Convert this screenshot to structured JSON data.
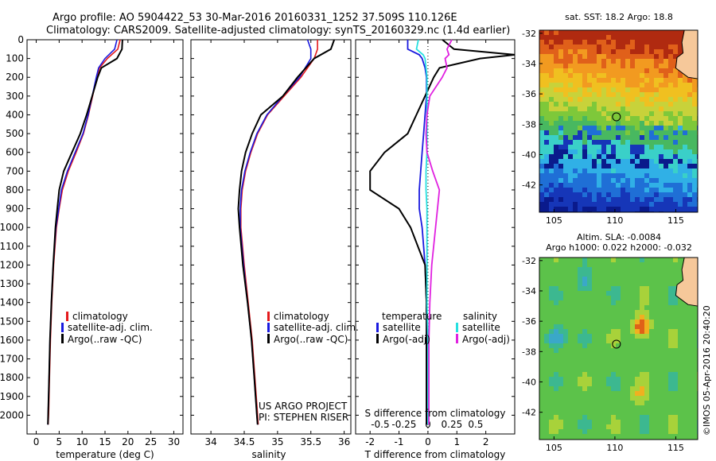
{
  "header": {
    "title_line1": "Argo profile: AO 5904422_53 30-Mar-2016 20160331_1252 37.509S 110.126E",
    "title_line2": "Climatology: CARS2009. Satellite-adjusted climatology: synTS_20160329.nc (1.4d earlier)"
  },
  "colors": {
    "climatology": "#e41a1c",
    "satellite": "#1a1adf",
    "argo": "#000000",
    "sat_salinity": "#26e0e0",
    "argo_salinity": "#e020e0"
  },
  "panels": {
    "temperature": {
      "xlabel": "temperature (deg C)",
      "legend": [
        "climatology",
        "satellite-adj. clim.",
        "Argo(..raw -QC)"
      ]
    },
    "salinity": {
      "xlabel": "salinity",
      "legend": [
        "climatology",
        "satellite-adj. clim.",
        "Argo(..raw -QC)"
      ],
      "credit1": "US ARGO PROJECT",
      "credit2": "PI: STEPHEN RISER"
    },
    "difference": {
      "xlabel": "T difference from climatology",
      "s_label": "S difference from climatology",
      "legend_t_title": "temperature",
      "legend_s_title": "salinity",
      "legend_t": [
        "satellite",
        "Argo(-adj)"
      ],
      "legend_s": [
        "satellite",
        "Argo(-adj)"
      ]
    }
  },
  "maps": {
    "sst_title": "sat. SST: 18.2  Argo: 18.8",
    "sla_title1": "Altim. SLA: -0.0084",
    "sla_title2": "Argo h1000: 0.022 h2000: -0.032",
    "watermark": "©IMOS 05-Apr-2016 20:40:20",
    "lat_ticks": [
      "-32",
      "-34",
      "-36",
      "-38",
      "-40",
      "-42"
    ],
    "lon_ticks": [
      "105",
      "110",
      "115"
    ],
    "float_lon": 110.126,
    "float_lat": -37.509
  },
  "chart_data": [
    {
      "type": "line",
      "xlabel": "temperature (deg C)",
      "ylabel": "",
      "xlim": [
        -2,
        32
      ],
      "ylim": [
        2100,
        0
      ],
      "x_ticks": [
        0,
        5,
        10,
        15,
        20,
        25,
        30
      ],
      "y_ticks": [
        0,
        100,
        200,
        300,
        400,
        500,
        600,
        700,
        800,
        900,
        1000,
        1100,
        1200,
        1300,
        1400,
        1500,
        1600,
        1700,
        1800,
        1900,
        2000
      ],
      "depth": [
        0,
        50,
        100,
        150,
        200,
        300,
        400,
        500,
        600,
        700,
        800,
        900,
        1000,
        1200,
        1400,
        1600,
        1800,
        2000,
        2050
      ],
      "series": [
        {
          "name": "climatology",
          "values": [
            18.3,
            17.8,
            15.5,
            13.8,
            13.2,
            12.3,
            11.4,
            10.3,
            8.7,
            7.0,
            5.7,
            5.0,
            4.4,
            3.8,
            3.4,
            3.1,
            2.9,
            2.7,
            2.6
          ]
        },
        {
          "name": "satellite-adj. clim.",
          "values": [
            17.6,
            17.1,
            15.0,
            13.6,
            13.1,
            12.2,
            11.3,
            10.2,
            8.5,
            6.8,
            5.5,
            4.9,
            4.3,
            3.7,
            3.3,
            3.0,
            2.8,
            2.6,
            2.55
          ]
        },
        {
          "name": "Argo(..raw -QC)",
          "values": [
            18.8,
            18.7,
            17.6,
            14.2,
            13.4,
            12.2,
            11.0,
            9.6,
            7.8,
            6.0,
            5.0,
            4.6,
            4.2,
            3.7,
            3.3,
            3.0,
            2.8,
            2.6,
            2.55
          ]
        }
      ]
    },
    {
      "type": "line",
      "xlabel": "salinity",
      "xlim": [
        33.7,
        36.1
      ],
      "ylim": [
        2100,
        0
      ],
      "x_ticks": [
        34,
        34.5,
        35,
        35.5,
        36
      ],
      "depth": [
        0,
        50,
        100,
        200,
        300,
        400,
        500,
        600,
        700,
        800,
        900,
        1000,
        1200,
        1400,
        1600,
        1800,
        2000,
        2050
      ],
      "series": [
        {
          "name": "climatology",
          "values": [
            35.6,
            35.6,
            35.55,
            35.35,
            35.1,
            34.85,
            34.7,
            34.6,
            34.52,
            34.47,
            34.45,
            34.45,
            34.5,
            34.56,
            34.62,
            34.66,
            34.7,
            34.71
          ]
        },
        {
          "name": "satellite-adj. clim.",
          "values": [
            35.45,
            35.5,
            35.5,
            35.33,
            35.08,
            34.84,
            34.69,
            34.59,
            34.51,
            34.46,
            34.44,
            34.44,
            34.49,
            34.55,
            34.61,
            34.65,
            34.69,
            34.7
          ]
        },
        {
          "name": "Argo(..raw -QC)",
          "values": [
            35.85,
            35.8,
            35.55,
            35.3,
            35.08,
            34.75,
            34.62,
            34.52,
            34.46,
            34.43,
            34.41,
            34.43,
            34.48,
            34.55,
            34.61,
            34.65,
            34.69,
            34.7
          ]
        }
      ]
    },
    {
      "type": "line",
      "xlabel": "T difference from climatology",
      "xlim": [
        -2.5,
        3
      ],
      "ylim": [
        2100,
        0
      ],
      "x_ticks": [
        -2,
        -1,
        0,
        1,
        2
      ],
      "s_ticks": [
        "-0.5",
        "-0.25",
        "0",
        "0.25",
        "0.5"
      ],
      "depth": [
        0,
        50,
        80,
        100,
        150,
        200,
        300,
        400,
        500,
        600,
        700,
        800,
        900,
        1000,
        1200,
        1400,
        1600,
        1800,
        2000,
        2050
      ],
      "series": [
        {
          "name": "T satellite",
          "values": [
            -0.7,
            -0.7,
            -0.3,
            -0.2,
            -0.1,
            -0.05,
            -0.05,
            -0.1,
            -0.15,
            -0.2,
            -0.25,
            -0.3,
            -0.3,
            -0.2,
            -0.1,
            -0.05,
            -0.05,
            -0.05,
            -0.05,
            -0.05
          ]
        },
        {
          "name": "T Argo(-adj)",
          "values": [
            0.5,
            0.9,
            3.0,
            1.8,
            0.4,
            0.2,
            -0.1,
            -0.4,
            -0.7,
            -1.5,
            -2.0,
            -2.0,
            -1.0,
            -0.6,
            -0.1,
            -0.05,
            -0.05,
            -0.05,
            -0.05,
            -0.05
          ]
        },
        {
          "name": "S satellite",
          "values": [
            -0.1,
            -0.12,
            -0.05,
            -0.03,
            -0.02,
            -0.01,
            -0.01,
            -0.01,
            -0.01,
            -0.01,
            -0.02,
            -0.02,
            -0.01,
            -0.01,
            -0.01,
            -0.01,
            0,
            0,
            0,
            0
          ]
        },
        {
          "name": "S Argo(-adj)",
          "values": [
            0.25,
            0.2,
            0.22,
            0.18,
            0.2,
            0.15,
            0.02,
            -0.01,
            -0.02,
            -0.01,
            0.05,
            0.12,
            0.1,
            0.08,
            0.04,
            0.02,
            0.01,
            0.01,
            0.01,
            0.01
          ]
        }
      ]
    },
    {
      "type": "heatmap",
      "title": "sat. SST: 18.2  Argo: 18.8",
      "x_ticks": [
        105,
        110,
        115
      ],
      "y_ticks": [
        -32,
        -34,
        -36,
        -38,
        -40,
        -42
      ],
      "xlim": [
        103.8,
        116.8
      ],
      "ylim": [
        -43.8,
        -31.8
      ],
      "lat_bands": [
        {
          "lat": -32,
          "value": "warm (orange/red)"
        },
        {
          "lat": -35,
          "value": "orange/yellow"
        },
        {
          "lat": -36.5,
          "value": "yellow-green"
        },
        {
          "lat": -38.5,
          "value": "green/cyan"
        },
        {
          "lat": -42,
          "value": "blue"
        }
      ]
    },
    {
      "type": "heatmap",
      "title": "Altim. SLA: -0.0084",
      "x_ticks": [
        105,
        110,
        115
      ],
      "y_ticks": [
        -32,
        -34,
        -36,
        -38,
        -40,
        -42
      ],
      "xlim": [
        103.8,
        116.8
      ],
      "ylim": [
        -43.8,
        -31.8
      ],
      "features": [
        {
          "lon": 112.2,
          "lat": -36.4,
          "sign": "positive"
        },
        {
          "lon": 105.2,
          "lat": -37.1,
          "sign": "negative"
        },
        {
          "lon": 107.5,
          "lat": -33.4,
          "sign": "negative"
        }
      ]
    }
  ]
}
